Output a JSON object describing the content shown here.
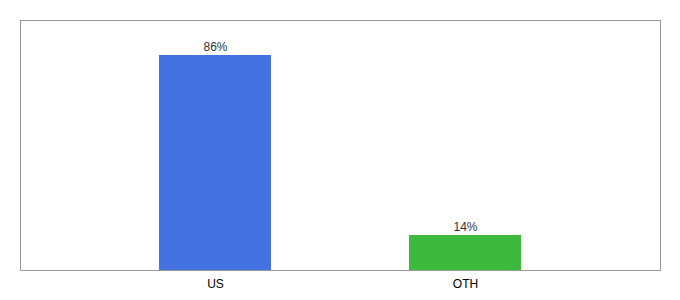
{
  "chart_data": {
    "type": "bar",
    "categories": [
      "US",
      "OTH"
    ],
    "values": [
      86,
      14
    ],
    "value_labels": [
      "86%",
      "14%"
    ],
    "colors": [
      "#4472e0",
      "#3dba3d"
    ],
    "ylim": [
      0,
      100
    ],
    "tick_labels": "x",
    "data_labels": true,
    "grid": false
  }
}
